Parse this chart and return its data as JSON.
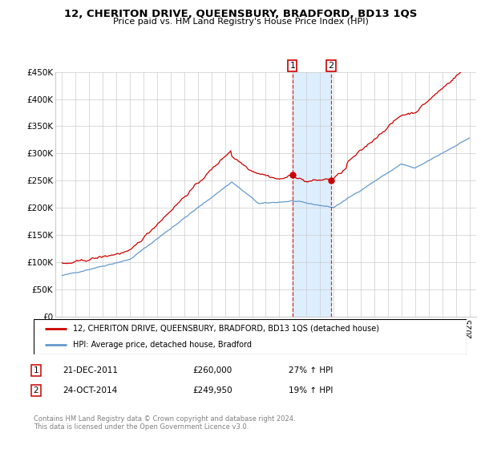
{
  "title": "12, CHERITON DRIVE, QUEENSBURY, BRADFORD, BD13 1QS",
  "subtitle": "Price paid vs. HM Land Registry's House Price Index (HPI)",
  "legend_line1": "12, CHERITON DRIVE, QUEENSBURY, BRADFORD, BD13 1QS (detached house)",
  "legend_line2": "HPI: Average price, detached house, Bradford",
  "transaction1_date": "21-DEC-2011",
  "transaction1_price": "£260,000",
  "transaction1_hpi": "27% ↑ HPI",
  "transaction2_date": "24-OCT-2014",
  "transaction2_price": "£249,950",
  "transaction2_hpi": "19% ↑ HPI",
  "footer": "Contains HM Land Registry data © Crown copyright and database right 2024.\nThis data is licensed under the Open Government Licence v3.0.",
  "red_color": "#cc0000",
  "blue_color": "#6699cc",
  "highlight_color": "#ddeeff",
  "marker1_x": 2011.97,
  "marker2_x": 2014.81,
  "ylim_min": 0,
  "ylim_max": 450000,
  "xlim_min": 1994.5,
  "xlim_max": 2025.5
}
